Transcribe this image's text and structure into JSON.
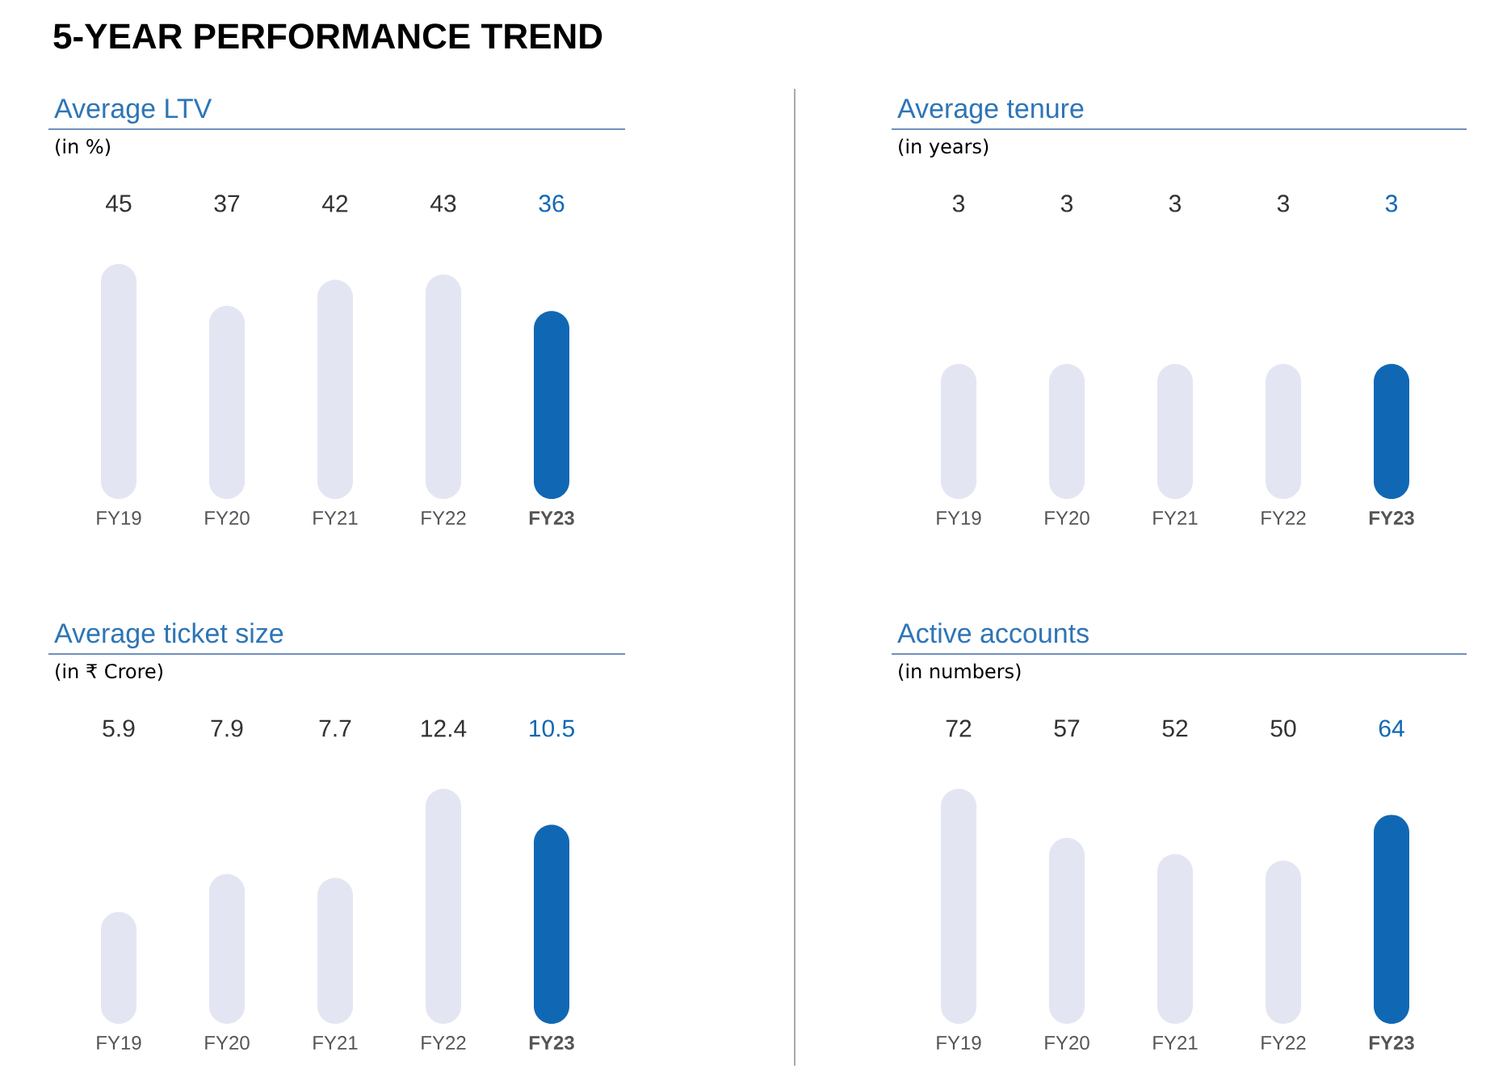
{
  "chart_data": [
    {
      "type": "other",
      "title": "5-YEAR PERFORMANCE TREND"
    },
    {
      "type": "bar",
      "title": "Average LTV",
      "subtitle": "(in %)",
      "categories": [
        "FY19",
        "FY20",
        "FY21",
        "FY22",
        "**FY23**"
      ],
      "values": [
        45,
        37,
        42,
        43,
        36
      ],
      "colors": [
        "#e3e6f2",
        "#e3e6f2",
        "#e3e6f2",
        "#e3e6f2",
        "#1068b4"
      ],
      "data_labels": true,
      "tick_labels": "x"
    },
    {
      "type": "bar",
      "title": "Average tenure",
      "subtitle": "(in years)",
      "categories": [
        "FY19",
        "FY20",
        "FY21",
        "FY22",
        "**FY23**"
      ],
      "values": [
        3,
        3,
        3,
        3,
        3
      ],
      "colors": [
        "#e3e6f2",
        "#e3e6f2",
        "#e3e6f2",
        "#e3e6f2",
        "#1068b4"
      ],
      "data_labels": true,
      "tick_labels": "x"
    },
    {
      "type": "bar",
      "title": "Average ticket size",
      "subtitle": "(in ₹ Crore)",
      "categories": [
        "FY19",
        "FY20",
        "FY21",
        "FY22",
        "**FY23**"
      ],
      "values": [
        5.9,
        7.9,
        7.7,
        12.4,
        10.5
      ],
      "colors": [
        "#e3e6f2",
        "#e3e6f2",
        "#e3e6f2",
        "#e3e6f2",
        "#1068b4"
      ],
      "data_labels": true,
      "tick_labels": "x"
    },
    {
      "type": "bar",
      "title": "Active accounts",
      "subtitle": "(in numbers)",
      "categories": [
        "FY19",
        "FY20",
        "FY21",
        "FY22",
        "**FY23**"
      ],
      "values": [
        72,
        57,
        52,
        50,
        64
      ],
      "colors": [
        "#e3e6f2",
        "#e3e6f2",
        "#e3e6f2",
        "#e3e6f2",
        "#1068b4"
      ],
      "data_labels": true,
      "tick_labels": "x"
    }
  ]
}
